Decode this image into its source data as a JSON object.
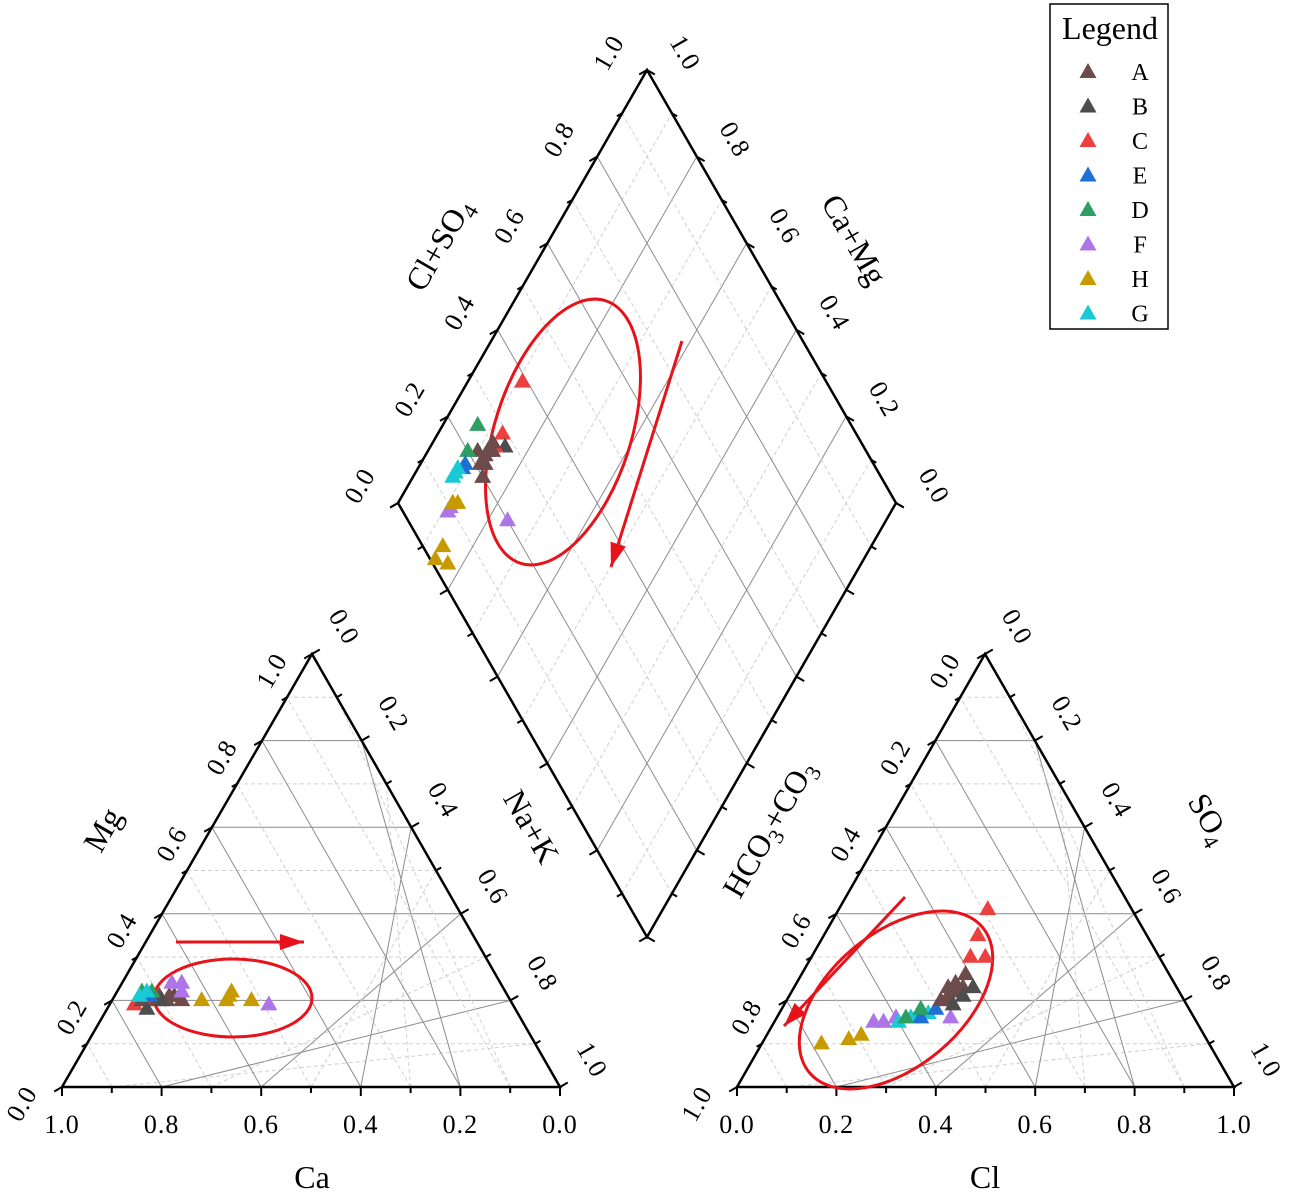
{
  "chart_data": {
    "type": "scatter",
    "subtype": "piper-diagram",
    "legend": {
      "title": "Legend",
      "placement": "top-right",
      "entries": [
        {
          "label": "A",
          "color": "#6e4b4b"
        },
        {
          "label": "B",
          "color": "#4d4d4d"
        },
        {
          "label": "C",
          "color": "#ea4040"
        },
        {
          "label": "E",
          "color": "#1f6fd6"
        },
        {
          "label": "D",
          "color": "#2e9e62"
        },
        {
          "label": "F",
          "color": "#ad75e6"
        },
        {
          "label": "H",
          "color": "#c79a00"
        },
        {
          "label": "G",
          "color": "#19c9d6"
        }
      ]
    },
    "cation_triangle": {
      "bottom_label": "Ca",
      "left_label": "Mg",
      "right_label": "Na+K",
      "bottom_ticks": [
        "1.0",
        "0.8",
        "0.6",
        "0.4",
        "0.2",
        "0.0"
      ],
      "left_ticks": [
        "0.0",
        "0.2",
        "0.4",
        "0.6",
        "0.8",
        "1.0"
      ],
      "right_ticks": [
        "0.0",
        "0.2",
        "0.4",
        "0.6",
        "0.8",
        "1.0"
      ],
      "grid": true,
      "points": [
        {
          "s": "C",
          "ca": 0.76,
          "mg": 0.19
        },
        {
          "s": "C",
          "ca": 0.73,
          "mg": 0.2
        },
        {
          "s": "A",
          "ca": 0.74,
          "mg": 0.2
        },
        {
          "s": "A",
          "ca": 0.72,
          "mg": 0.21
        },
        {
          "s": "A",
          "ca": 0.71,
          "mg": 0.2
        },
        {
          "s": "A",
          "ca": 0.7,
          "mg": 0.21
        },
        {
          "s": "A",
          "ca": 0.69,
          "mg": 0.2
        },
        {
          "s": "A",
          "ca": 0.68,
          "mg": 0.21
        },
        {
          "s": "A",
          "ca": 0.67,
          "mg": 0.21
        },
        {
          "s": "A",
          "ca": 0.66,
          "mg": 0.2
        },
        {
          "s": "B",
          "ca": 0.74,
          "mg": 0.18
        },
        {
          "s": "B",
          "ca": 0.7,
          "mg": 0.2
        },
        {
          "s": "D",
          "ca": 0.73,
          "mg": 0.22
        },
        {
          "s": "D",
          "ca": 0.71,
          "mg": 0.22
        },
        {
          "s": "E",
          "ca": 0.72,
          "mg": 0.21
        },
        {
          "s": "G",
          "ca": 0.74,
          "mg": 0.21
        },
        {
          "s": "G",
          "ca": 0.72,
          "mg": 0.22
        },
        {
          "s": "F",
          "ca": 0.66,
          "mg": 0.24
        },
        {
          "s": "F",
          "ca": 0.64,
          "mg": 0.24
        },
        {
          "s": "F",
          "ca": 0.65,
          "mg": 0.22
        },
        {
          "s": "F",
          "ca": 0.49,
          "mg": 0.19
        },
        {
          "s": "H",
          "ca": 0.62,
          "mg": 0.2
        },
        {
          "s": "H",
          "ca": 0.56,
          "mg": 0.21
        },
        {
          "s": "H",
          "ca": 0.55,
          "mg": 0.22
        },
        {
          "s": "H",
          "ca": 0.52,
          "mg": 0.2
        },
        {
          "s": "H",
          "ca": 0.57,
          "mg": 0.2
        }
      ]
    },
    "anion_triangle": {
      "bottom_label": "Cl",
      "left_label": "HCO3+CO3",
      "right_label": "SO4",
      "bottom_ticks": [
        "0.0",
        "0.2",
        "0.4",
        "0.6",
        "0.8",
        "1.0"
      ],
      "left_ticks": [
        "1.0",
        "0.8",
        "0.6",
        "0.4",
        "0.2",
        "0.0"
      ],
      "right_ticks": [
        "0.0",
        "0.2",
        "0.4",
        "0.6",
        "0.8",
        "1.0"
      ],
      "grid": true,
      "points": [
        {
          "s": "H",
          "cl": 0.12,
          "so4": 0.1
        },
        {
          "s": "H",
          "cl": 0.17,
          "so4": 0.11
        },
        {
          "s": "H",
          "cl": 0.19,
          "so4": 0.12
        },
        {
          "s": "F",
          "cl": 0.2,
          "so4": 0.15
        },
        {
          "s": "F",
          "cl": 0.22,
          "so4": 0.15
        },
        {
          "s": "F",
          "cl": 0.24,
          "so4": 0.16
        },
        {
          "s": "F",
          "cl": 0.35,
          "so4": 0.16
        },
        {
          "s": "G",
          "cl": 0.25,
          "so4": 0.15
        },
        {
          "s": "G",
          "cl": 0.27,
          "so4": 0.16
        },
        {
          "s": "G",
          "cl": 0.28,
          "so4": 0.17
        },
        {
          "s": "G",
          "cl": 0.3,
          "so4": 0.17
        },
        {
          "s": "E",
          "cl": 0.29,
          "so4": 0.16
        },
        {
          "s": "E",
          "cl": 0.31,
          "so4": 0.18
        },
        {
          "s": "D",
          "cl": 0.26,
          "so4": 0.16
        },
        {
          "s": "D",
          "cl": 0.28,
          "so4": 0.18
        },
        {
          "s": "A",
          "cl": 0.31,
          "so4": 0.2
        },
        {
          "s": "A",
          "cl": 0.32,
          "so4": 0.21
        },
        {
          "s": "A",
          "cl": 0.31,
          "so4": 0.23
        },
        {
          "s": "A",
          "cl": 0.33,
          "so4": 0.22
        },
        {
          "s": "A",
          "cl": 0.32,
          "so4": 0.24
        },
        {
          "s": "A",
          "cl": 0.34,
          "so4": 0.23
        },
        {
          "s": "A",
          "cl": 0.33,
          "so4": 0.26
        },
        {
          "s": "A",
          "cl": 0.33,
          "so4": 0.2
        },
        {
          "s": "B",
          "cl": 0.35,
          "so4": 0.21
        },
        {
          "s": "B",
          "cl": 0.36,
          "so4": 0.23
        },
        {
          "s": "B",
          "cl": 0.34,
          "so4": 0.19
        },
        {
          "s": "C",
          "cl": 0.32,
          "so4": 0.3
        },
        {
          "s": "C",
          "cl": 0.31,
          "so4": 0.35
        },
        {
          "s": "C",
          "cl": 0.3,
          "so4": 0.41
        },
        {
          "s": "C",
          "cl": 0.35,
          "so4": 0.3
        }
      ]
    },
    "diamond": {
      "left_label": "Cl+SO4",
      "right_label": "Ca+Mg",
      "left_ticks": [
        "0.0",
        "0.2",
        "0.4",
        "0.6",
        "0.8",
        "1.0"
      ],
      "right_ticks": [
        "1.0",
        "0.8",
        "0.6",
        "0.4",
        "0.2",
        "0.0"
      ],
      "grid": true,
      "points": [
        {
          "s": "C",
          "clso4": 0.39,
          "camg": 0.89
        },
        {
          "s": "C",
          "clso4": 0.29,
          "camg": 0.87
        },
        {
          "s": "B",
          "clso4": 0.28,
          "camg": 0.85
        },
        {
          "s": "C",
          "clso4": 0.26,
          "camg": 0.87
        },
        {
          "s": "A",
          "clso4": 0.26,
          "camg": 0.88
        },
        {
          "s": "A",
          "clso4": 0.25,
          "camg": 0.87
        },
        {
          "s": "A",
          "clso4": 0.24,
          "camg": 0.88
        },
        {
          "s": "A",
          "clso4": 0.23,
          "camg": 0.88
        },
        {
          "s": "A",
          "clso4": 0.22,
          "camg": 0.87
        },
        {
          "s": "A",
          "clso4": 0.21,
          "camg": 0.88
        },
        {
          "s": "A",
          "clso4": 0.2,
          "camg": 0.86
        },
        {
          "s": "A",
          "clso4": 0.22,
          "camg": 0.9
        },
        {
          "s": "D",
          "clso4": 0.25,
          "camg": 0.93
        },
        {
          "s": "D",
          "clso4": 0.2,
          "camg": 0.92
        },
        {
          "s": "E",
          "clso4": 0.18,
          "camg": 0.91
        },
        {
          "s": "E",
          "clso4": 0.17,
          "camg": 0.91
        },
        {
          "s": "G",
          "clso4": 0.16,
          "camg": 0.92
        },
        {
          "s": "G",
          "clso4": 0.15,
          "camg": 0.92
        },
        {
          "s": "G",
          "clso4": 0.14,
          "camg": 0.92
        },
        {
          "s": "F",
          "clso4": 0.1,
          "camg": 0.89
        },
        {
          "s": "F",
          "clso4": 0.09,
          "camg": 0.89
        },
        {
          "s": "F",
          "clso4": 0.2,
          "camg": 0.76
        },
        {
          "s": "H",
          "clso4": 0.12,
          "camg": 0.88
        },
        {
          "s": "H",
          "clso4": 0.11,
          "camg": 0.89
        },
        {
          "s": "H",
          "clso4": 0.04,
          "camg": 0.86
        },
        {
          "s": "H",
          "clso4": 0.03,
          "camg": 0.83
        },
        {
          "s": "H",
          "clso4": 0.01,
          "camg": 0.86
        }
      ]
    }
  }
}
